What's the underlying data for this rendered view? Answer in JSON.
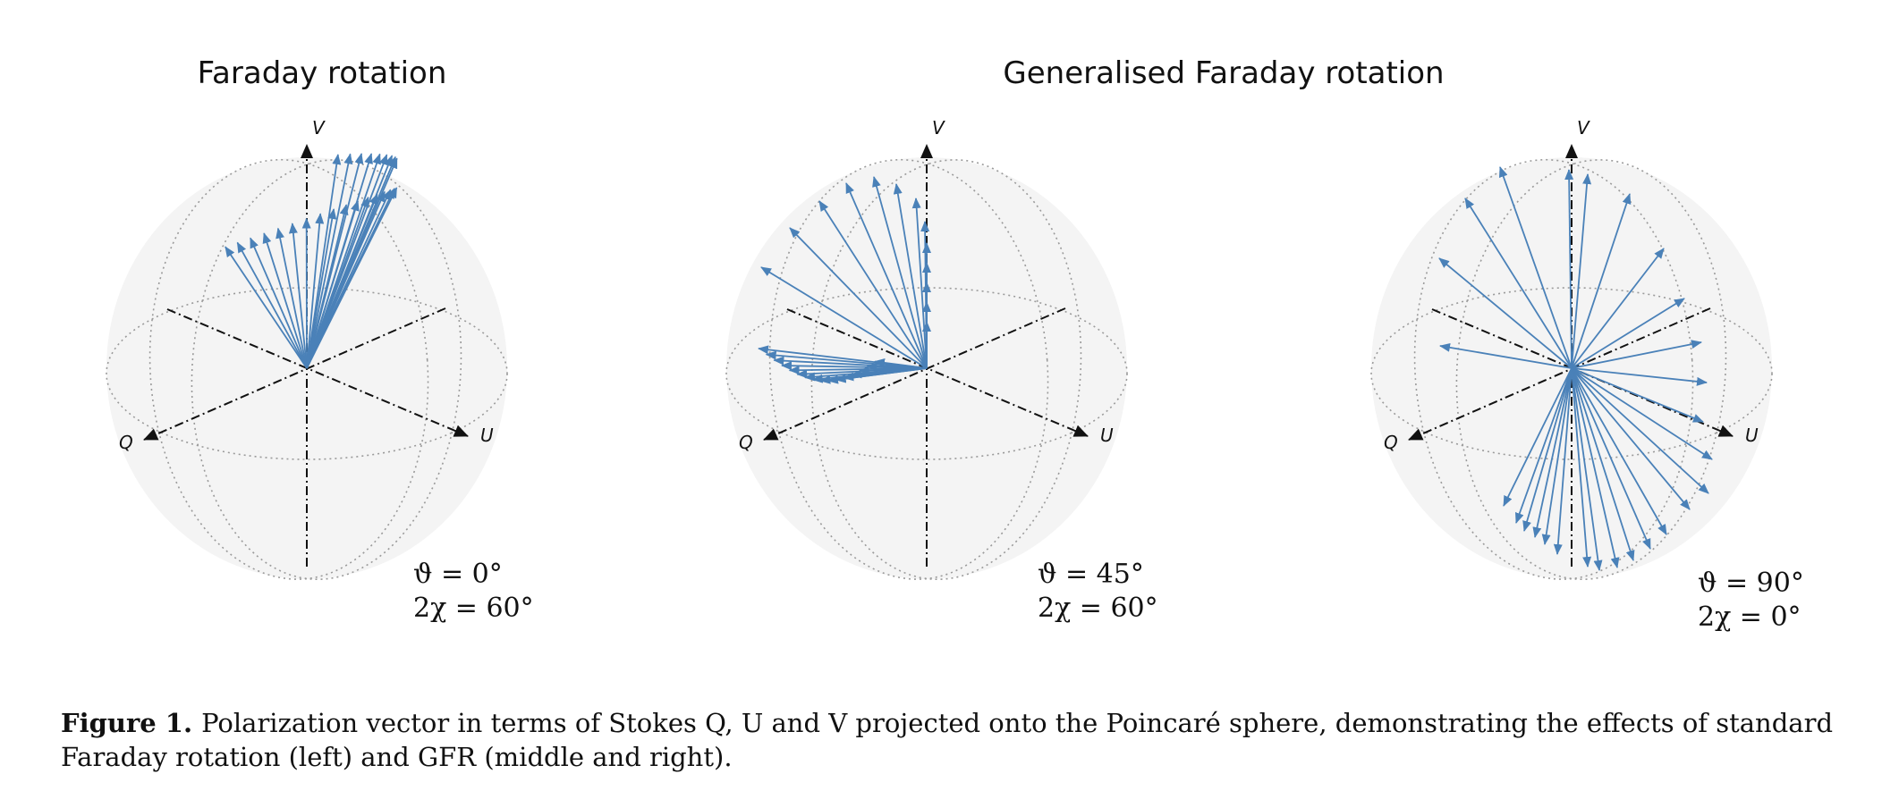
{
  "titles": {
    "left": "Faraday rotation",
    "right": "Generalised Faraday rotation"
  },
  "axes": {
    "q": "Q",
    "u": "U",
    "v": "V"
  },
  "colors": {
    "vector": "#4a81b8",
    "sphere_fill": "#f4f4f4",
    "grid": "#9a9a9a",
    "axis": "#111111"
  },
  "panels": [
    {
      "id": "left",
      "theta": "ϑ = 0°",
      "chi": "2χ = 60°"
    },
    {
      "id": "middle",
      "theta": "ϑ = 45°",
      "chi": "2χ = 60°"
    },
    {
      "id": "right",
      "theta": "ϑ = 90°",
      "chi": "2χ = 0°"
    }
  ],
  "caption": {
    "label": "Figure 1.",
    "text": "Polarization vector in terms of Stokes Q, U and V projected onto the Poincaré sphere, demonstrating the effects of standard Faraday rotation (left) and GFR (middle and right)."
  }
}
